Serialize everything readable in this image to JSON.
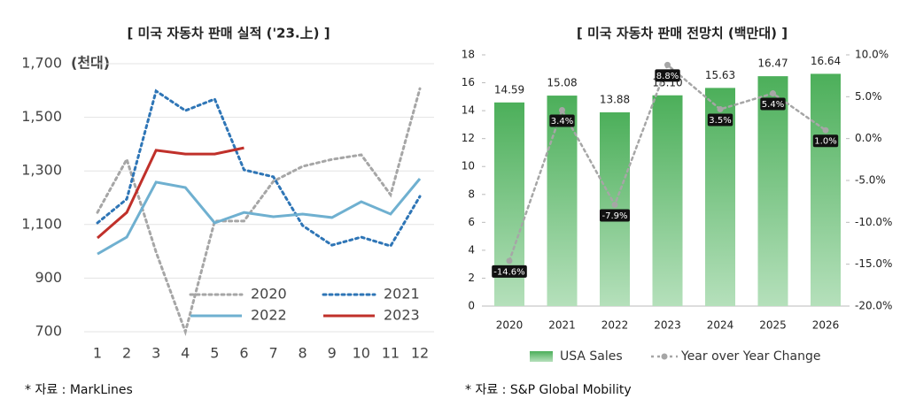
{
  "chart_data": [
    {
      "type": "line",
      "title": "[ 미국 자동차 판매 실적 ('23.上) ]",
      "y_label": "(천대)",
      "note": "* 자료 : MarkLines",
      "categories": [
        "1",
        "2",
        "3",
        "4",
        "5",
        "6",
        "7",
        "8",
        "9",
        "10",
        "11",
        "12"
      ],
      "ylim": [
        700,
        1700
      ],
      "yticks": [
        700,
        900,
        {
          "value": 1100,
          "label": "1,100"
        },
        {
          "value": 1300,
          "label": "1,300"
        },
        {
          "value": 1500,
          "label": "1,500"
        },
        {
          "value": 1700,
          "label": "1,700"
        }
      ],
      "grid": true,
      "series": [
        {
          "name": "2020",
          "color": "#a6a6a6",
          "line_style": "dotted",
          "values": [
            1145,
            1343,
            997,
            700,
            1113,
            1113,
            1261,
            1317,
            1343,
            1360,
            1211,
            1607
          ]
        },
        {
          "name": "2021",
          "color": "#2e75b6",
          "line_style": "dotted",
          "values": [
            1106,
            1195,
            1598,
            1525,
            1568,
            1304,
            1278,
            1096,
            1023,
            1053,
            1020,
            1205
          ]
        },
        {
          "name": "2022",
          "color": "#6fb0d0",
          "line_style": "solid",
          "values": [
            990,
            1053,
            1258,
            1238,
            1106,
            1145,
            1129,
            1139,
            1126,
            1185,
            1139,
            1271
          ]
        },
        {
          "name": "2023",
          "color": "#c0302a",
          "line_style": "solid",
          "values": [
            1050,
            1145,
            1377,
            1363,
            1363,
            1386,
            null,
            null,
            null,
            null,
            null,
            null
          ]
        }
      ]
    },
    {
      "type": "bar",
      "title": "[ 미국 자동차 판매 전망치 (백만대) ]",
      "note": "* 자료 : S&P Global Mobility",
      "categories": [
        "2020",
        "2021",
        "2022",
        "2023",
        "2024",
        "2025",
        "2026"
      ],
      "ylim": [
        0,
        18
      ],
      "yticks": [
        0,
        2,
        4,
        6,
        8,
        10,
        12,
        14,
        16,
        18
      ],
      "y2lim": [
        -20,
        10
      ],
      "y2ticks": [
        {
          "value": -20,
          "label": "-20.0%"
        },
        {
          "value": -15,
          "label": "-15.0%"
        },
        {
          "value": -10,
          "label": "-10.0%"
        },
        {
          "value": -5,
          "label": "-5.0%"
        },
        {
          "value": 0,
          "label": "0.0%"
        },
        {
          "value": 5,
          "label": "5.0%"
        },
        {
          "value": 10,
          "label": "10.0%"
        }
      ],
      "grid": false,
      "legend": "bottom",
      "series": [
        {
          "name": "USA Sales",
          "type": "bar",
          "color": "#4caf5a",
          "values": [
            14.59,
            15.08,
            13.88,
            15.1,
            15.63,
            16.47,
            16.64
          ],
          "value_labels": [
            "14.59",
            "15.08",
            "13.88",
            "15.10",
            "15.63",
            "16.47",
            "16.64"
          ]
        },
        {
          "name": "Year over Year Change",
          "type": "line",
          "axis": "y2",
          "color": "#a6a6a6",
          "line_style": "dotted",
          "values": [
            -14.6,
            3.4,
            -7.9,
            8.8,
            3.5,
            5.4,
            1.0
          ],
          "value_labels": [
            "-14.6%",
            "3.4%",
            "-7.9%",
            "8.8%",
            "3.5%",
            "5.4%",
            "1.0%"
          ]
        }
      ]
    }
  ]
}
